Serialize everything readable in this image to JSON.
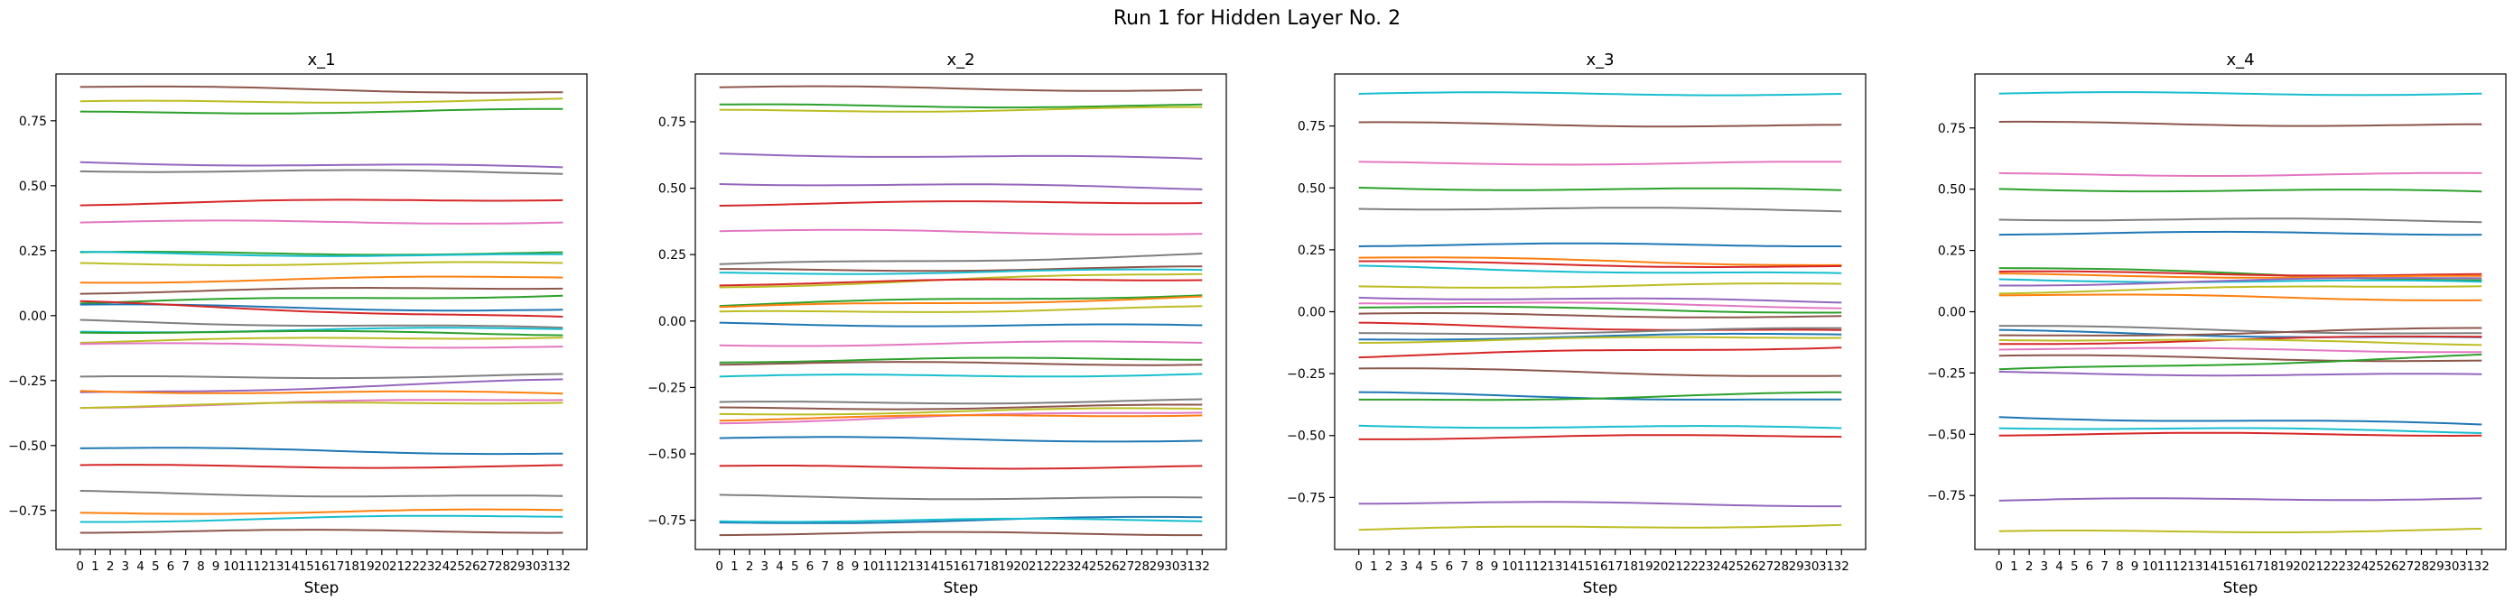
{
  "figure": {
    "suptitle": "Run 1 for Hidden Layer No. 2"
  },
  "palette": [
    "#1f77b4",
    "#ff7f0e",
    "#2ca02c",
    "#d62728",
    "#9467bd",
    "#8c564b",
    "#e377c2",
    "#7f7f7f",
    "#bcbd22",
    "#17becf"
  ],
  "chart_data": [
    {
      "type": "line",
      "title": "x_1",
      "xlabel": "Step",
      "ylabel": "",
      "x": [
        0,
        1,
        2,
        3,
        4,
        5,
        6,
        7,
        8,
        9,
        10,
        11,
        12,
        13,
        14,
        15,
        16,
        17,
        18,
        19,
        20,
        21,
        22,
        23,
        24,
        25,
        26,
        27,
        28,
        29,
        30,
        31,
        32
      ],
      "xticks": [
        0,
        1,
        2,
        3,
        4,
        5,
        6,
        7,
        8,
        9,
        10,
        11,
        12,
        13,
        14,
        15,
        16,
        17,
        18,
        19,
        20,
        21,
        22,
        23,
        24,
        25,
        26,
        27,
        28,
        29,
        30,
        31,
        32
      ],
      "ylim": [
        -0.9,
        0.93
      ],
      "yticks": [
        -0.75,
        -0.5,
        -0.25,
        0.0,
        0.25,
        0.5,
        0.75
      ],
      "ytick_labels": [
        "−0.75",
        "−0.50",
        "−0.25",
        "0.00",
        "0.25",
        "0.50",
        "0.75"
      ],
      "series": [
        {
          "color": "#8c564b",
          "start": 0.88,
          "end": 0.86
        },
        {
          "color": "#bcbd22",
          "start": 0.82,
          "end": 0.83
        },
        {
          "color": "#2ca02c",
          "start": 0.78,
          "end": 0.79
        },
        {
          "color": "#9467bd",
          "start": 0.59,
          "end": 0.57
        },
        {
          "color": "#7f7f7f",
          "start": 0.56,
          "end": 0.55
        },
        {
          "color": "#d62728",
          "start": 0.43,
          "end": 0.45
        },
        {
          "color": "#e377c2",
          "start": 0.36,
          "end": 0.36
        },
        {
          "color": "#2ca02c",
          "start": 0.24,
          "end": 0.24
        },
        {
          "color": "#17becf",
          "start": 0.24,
          "end": 0.23
        },
        {
          "color": "#bcbd22",
          "start": 0.2,
          "end": 0.2
        },
        {
          "color": "#ff7f0e",
          "start": 0.13,
          "end": 0.15
        },
        {
          "color": "#8c564b",
          "start": 0.09,
          "end": 0.11
        },
        {
          "color": "#2ca02c",
          "start": 0.05,
          "end": 0.08
        },
        {
          "color": "#1f77b4",
          "start": 0.04,
          "end": 0.02
        },
        {
          "color": "#d62728",
          "start": 0.05,
          "end": -0.01
        },
        {
          "color": "#7f7f7f",
          "start": -0.02,
          "end": -0.05
        },
        {
          "color": "#17becf",
          "start": -0.06,
          "end": -0.05
        },
        {
          "color": "#2ca02c",
          "start": -0.06,
          "end": -0.07
        },
        {
          "color": "#bcbd22",
          "start": -0.1,
          "end": -0.08
        },
        {
          "color": "#e377c2",
          "start": -0.11,
          "end": -0.12
        },
        {
          "color": "#7f7f7f",
          "start": -0.24,
          "end": -0.23
        },
        {
          "color": "#9467bd",
          "start": -0.3,
          "end": -0.25
        },
        {
          "color": "#ff7f0e",
          "start": -0.29,
          "end": -0.3
        },
        {
          "color": "#e377c2",
          "start": -0.35,
          "end": -0.32
        },
        {
          "color": "#bcbd22",
          "start": -0.35,
          "end": -0.33
        },
        {
          "color": "#1f77b4",
          "start": -0.51,
          "end": -0.53
        },
        {
          "color": "#d62728",
          "start": -0.58,
          "end": -0.58
        },
        {
          "color": "#7f7f7f",
          "start": -0.68,
          "end": -0.7
        },
        {
          "color": "#ff7f0e",
          "start": -0.76,
          "end": -0.75
        },
        {
          "color": "#17becf",
          "start": -0.79,
          "end": -0.77
        },
        {
          "color": "#8c564b",
          "start": -0.83,
          "end": -0.83
        }
      ]
    },
    {
      "type": "line",
      "title": "x_2",
      "xlabel": "Step",
      "ylabel": "",
      "x": [
        0,
        1,
        2,
        3,
        4,
        5,
        6,
        7,
        8,
        9,
        10,
        11,
        12,
        13,
        14,
        15,
        16,
        17,
        18,
        19,
        20,
        21,
        22,
        23,
        24,
        25,
        26,
        27,
        28,
        29,
        30,
        31,
        32
      ],
      "xticks": [
        0,
        1,
        2,
        3,
        4,
        5,
        6,
        7,
        8,
        9,
        10,
        11,
        12,
        13,
        14,
        15,
        16,
        17,
        18,
        19,
        20,
        21,
        22,
        23,
        24,
        25,
        26,
        27,
        28,
        29,
        30,
        31,
        32
      ],
      "ylim": [
        -0.86,
        0.93
      ],
      "yticks": [
        -0.75,
        -0.5,
        -0.25,
        0.0,
        0.25,
        0.5,
        0.75
      ],
      "ytick_labels": [
        "−0.75",
        "−0.50",
        "−0.25",
        "0.00",
        "0.25",
        "0.50",
        "0.75"
      ],
      "series": [
        {
          "color": "#8c564b",
          "start": 0.88,
          "end": 0.87
        },
        {
          "color": "#2ca02c",
          "start": 0.81,
          "end": 0.81
        },
        {
          "color": "#bcbd22",
          "start": 0.79,
          "end": 0.8
        },
        {
          "color": "#9467bd",
          "start": 0.63,
          "end": 0.61
        },
        {
          "color": "#9467bd",
          "start": 0.52,
          "end": 0.5
        },
        {
          "color": "#d62728",
          "start": 0.44,
          "end": 0.45
        },
        {
          "color": "#e377c2",
          "start": 0.34,
          "end": 0.33
        },
        {
          "color": "#7f7f7f",
          "start": 0.21,
          "end": 0.25
        },
        {
          "color": "#8c564b",
          "start": 0.19,
          "end": 0.2
        },
        {
          "color": "#17becf",
          "start": 0.18,
          "end": 0.19
        },
        {
          "color": "#bcbd22",
          "start": 0.13,
          "end": 0.18
        },
        {
          "color": "#d62728",
          "start": 0.14,
          "end": 0.16
        },
        {
          "color": "#2ca02c",
          "start": 0.06,
          "end": 0.1
        },
        {
          "color": "#ff7f0e",
          "start": 0.05,
          "end": 0.09
        },
        {
          "color": "#bcbd22",
          "start": 0.03,
          "end": 0.05
        },
        {
          "color": "#1f77b4",
          "start": -0.01,
          "end": -0.02
        },
        {
          "color": "#e377c2",
          "start": -0.09,
          "end": -0.08
        },
        {
          "color": "#2ca02c",
          "start": -0.15,
          "end": -0.14
        },
        {
          "color": "#8c564b",
          "start": -0.16,
          "end": -0.16
        },
        {
          "color": "#17becf",
          "start": -0.21,
          "end": -0.2
        },
        {
          "color": "#7f7f7f",
          "start": -0.31,
          "end": -0.3
        },
        {
          "color": "#8c564b",
          "start": -0.33,
          "end": -0.32
        },
        {
          "color": "#bcbd22",
          "start": -0.35,
          "end": -0.33
        },
        {
          "color": "#e377c2",
          "start": -0.38,
          "end": -0.34
        },
        {
          "color": "#ff7f0e",
          "start": -0.37,
          "end": -0.35
        },
        {
          "color": "#1f77b4",
          "start": -0.44,
          "end": -0.45
        },
        {
          "color": "#d62728",
          "start": -0.55,
          "end": -0.55
        },
        {
          "color": "#7f7f7f",
          "start": -0.66,
          "end": -0.67
        },
        {
          "color": "#1f77b4",
          "start": -0.76,
          "end": -0.74
        },
        {
          "color": "#17becf",
          "start": -0.75,
          "end": -0.75
        },
        {
          "color": "#8c564b",
          "start": -0.8,
          "end": -0.8
        }
      ]
    },
    {
      "type": "line",
      "title": "x_3",
      "xlabel": "Step",
      "ylabel": "",
      "x": [
        0,
        1,
        2,
        3,
        4,
        5,
        6,
        7,
        8,
        9,
        10,
        11,
        12,
        13,
        14,
        15,
        16,
        17,
        18,
        19,
        20,
        21,
        22,
        23,
        24,
        25,
        26,
        27,
        28,
        29,
        30,
        31,
        32
      ],
      "xticks": [
        0,
        1,
        2,
        3,
        4,
        5,
        6,
        7,
        8,
        9,
        10,
        11,
        12,
        13,
        14,
        15,
        16,
        17,
        18,
        19,
        20,
        21,
        22,
        23,
        24,
        25,
        26,
        27,
        28,
        29,
        30,
        31,
        32
      ],
      "ylim": [
        -0.96,
        0.96
      ],
      "yticks": [
        -0.75,
        -0.5,
        -0.25,
        0.0,
        0.25,
        0.5,
        0.75
      ],
      "ytick_labels": [
        "−0.75",
        "−0.50",
        "−0.25",
        "0.00",
        "0.25",
        "0.50",
        "0.75"
      ],
      "series": [
        {
          "color": "#17becf",
          "start": 0.88,
          "end": 0.88
        },
        {
          "color": "#8c564b",
          "start": 0.76,
          "end": 0.75
        },
        {
          "color": "#e377c2",
          "start": 0.6,
          "end": 0.6
        },
        {
          "color": "#2ca02c",
          "start": 0.5,
          "end": 0.49
        },
        {
          "color": "#7f7f7f",
          "start": 0.42,
          "end": 0.41
        },
        {
          "color": "#1f77b4",
          "start": 0.27,
          "end": 0.27
        },
        {
          "color": "#ff7f0e",
          "start": 0.22,
          "end": 0.19
        },
        {
          "color": "#d62728",
          "start": 0.2,
          "end": 0.18
        },
        {
          "color": "#17becf",
          "start": 0.18,
          "end": 0.15
        },
        {
          "color": "#bcbd22",
          "start": 0.1,
          "end": 0.11
        },
        {
          "color": "#9467bd",
          "start": 0.06,
          "end": 0.04
        },
        {
          "color": "#e377c2",
          "start": 0.04,
          "end": 0.02
        },
        {
          "color": "#2ca02c",
          "start": 0.02,
          "end": 0.0
        },
        {
          "color": "#8c564b",
          "start": -0.01,
          "end": -0.02
        },
        {
          "color": "#d62728",
          "start": -0.05,
          "end": -0.08
        },
        {
          "color": "#7f7f7f",
          "start": -0.09,
          "end": -0.07
        },
        {
          "color": "#1f77b4",
          "start": -0.11,
          "end": -0.09
        },
        {
          "color": "#bcbd22",
          "start": -0.12,
          "end": -0.1
        },
        {
          "color": "#d62728",
          "start": -0.18,
          "end": -0.14
        },
        {
          "color": "#8c564b",
          "start": -0.23,
          "end": -0.26
        },
        {
          "color": "#1f77b4",
          "start": -0.33,
          "end": -0.36
        },
        {
          "color": "#2ca02c",
          "start": -0.36,
          "end": -0.33
        },
        {
          "color": "#17becf",
          "start": -0.46,
          "end": -0.47
        },
        {
          "color": "#d62728",
          "start": -0.51,
          "end": -0.5
        },
        {
          "color": "#9467bd",
          "start": -0.77,
          "end": -0.78
        },
        {
          "color": "#bcbd22",
          "start": -0.88,
          "end": -0.86
        }
      ]
    },
    {
      "type": "line",
      "title": "x_4",
      "xlabel": "Step",
      "ylabel": "",
      "x": [
        0,
        1,
        2,
        3,
        4,
        5,
        6,
        7,
        8,
        9,
        10,
        11,
        12,
        13,
        14,
        15,
        16,
        17,
        18,
        19,
        20,
        21,
        22,
        23,
        24,
        25,
        26,
        27,
        28,
        29,
        30,
        31,
        32
      ],
      "xticks": [
        0,
        1,
        2,
        3,
        4,
        5,
        6,
        7,
        8,
        9,
        10,
        11,
        12,
        13,
        14,
        15,
        16,
        17,
        18,
        19,
        20,
        21,
        22,
        23,
        24,
        25,
        26,
        27,
        28,
        29,
        30,
        31,
        32
      ],
      "ylim": [
        -0.97,
        0.97
      ],
      "yticks": [
        -0.75,
        -0.5,
        -0.25,
        0.0,
        0.25,
        0.5,
        0.75
      ],
      "ytick_labels": [
        "−0.75",
        "−0.50",
        "−0.25",
        "0.00",
        "0.25",
        "0.50",
        "0.75"
      ],
      "series": [
        {
          "color": "#17becf",
          "start": 0.89,
          "end": 0.89
        },
        {
          "color": "#8c564b",
          "start": 0.77,
          "end": 0.76
        },
        {
          "color": "#e377c2",
          "start": 0.56,
          "end": 0.56
        },
        {
          "color": "#2ca02c",
          "start": 0.5,
          "end": 0.49
        },
        {
          "color": "#7f7f7f",
          "start": 0.38,
          "end": 0.37
        },
        {
          "color": "#1f77b4",
          "start": 0.32,
          "end": 0.32
        },
        {
          "color": "#2ca02c",
          "start": 0.18,
          "end": 0.13
        },
        {
          "color": "#d62728",
          "start": 0.16,
          "end": 0.15
        },
        {
          "color": "#ff7f0e",
          "start": 0.15,
          "end": 0.14
        },
        {
          "color": "#17becf",
          "start": 0.13,
          "end": 0.12
        },
        {
          "color": "#9467bd",
          "start": 0.11,
          "end": 0.14
        },
        {
          "color": "#bcbd22",
          "start": 0.08,
          "end": 0.11
        },
        {
          "color": "#ff7f0e",
          "start": 0.07,
          "end": 0.05
        },
        {
          "color": "#7f7f7f",
          "start": -0.06,
          "end": -0.09
        },
        {
          "color": "#1f77b4",
          "start": -0.08,
          "end": -0.11
        },
        {
          "color": "#8c564b",
          "start": -0.1,
          "end": -0.07
        },
        {
          "color": "#d62728",
          "start": -0.13,
          "end": -0.1
        },
        {
          "color": "#bcbd22",
          "start": -0.11,
          "end": -0.13
        },
        {
          "color": "#e377c2",
          "start": -0.15,
          "end": -0.16
        },
        {
          "color": "#8c564b",
          "start": -0.18,
          "end": -0.2
        },
        {
          "color": "#2ca02c",
          "start": -0.24,
          "end": -0.18
        },
        {
          "color": "#9467bd",
          "start": -0.25,
          "end": -0.26
        },
        {
          "color": "#1f77b4",
          "start": -0.43,
          "end": -0.46
        },
        {
          "color": "#17becf",
          "start": -0.47,
          "end": -0.49
        },
        {
          "color": "#d62728",
          "start": -0.5,
          "end": -0.5
        },
        {
          "color": "#9467bd",
          "start": -0.77,
          "end": -0.76
        },
        {
          "color": "#bcbd22",
          "start": -0.9,
          "end": -0.89
        }
      ]
    }
  ]
}
